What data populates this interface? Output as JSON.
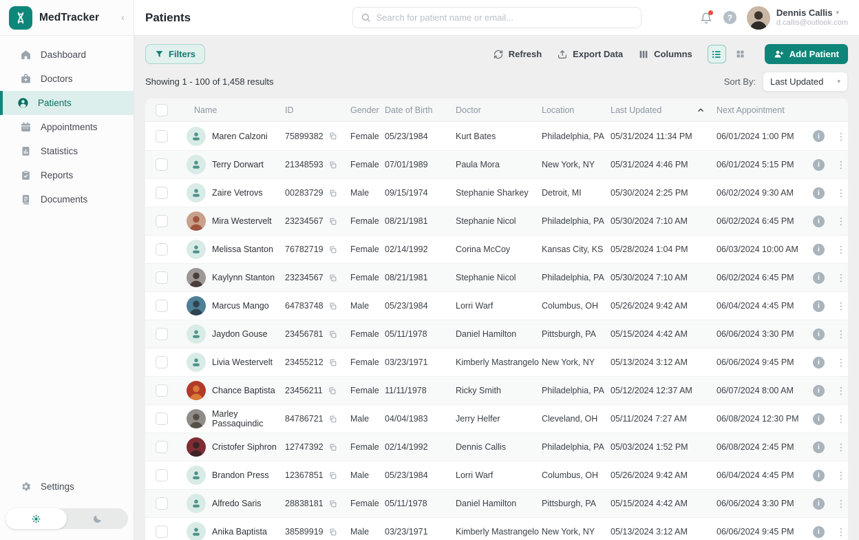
{
  "brand": {
    "name": "MedTracker"
  },
  "sidebar": {
    "items": [
      {
        "label": "Dashboard",
        "icon": "home-icon",
        "active": false
      },
      {
        "label": "Doctors",
        "icon": "doctors-icon",
        "active": false
      },
      {
        "label": "Patients",
        "icon": "patients-icon",
        "active": true
      },
      {
        "label": "Appointments",
        "icon": "calendar-icon",
        "active": false
      },
      {
        "label": "Statistics",
        "icon": "statistics-icon",
        "active": false
      },
      {
        "label": "Reports",
        "icon": "reports-icon",
        "active": false
      },
      {
        "label": "Documents",
        "icon": "documents-icon",
        "active": false
      }
    ],
    "settings_label": "Settings"
  },
  "header": {
    "title": "Patients",
    "search_placeholder": "Search for patient name or email...",
    "user": {
      "name": "Dennis Callis",
      "email": "d.callis@outlook.com"
    }
  },
  "toolbar": {
    "filters_label": "Filters",
    "refresh_label": "Refresh",
    "export_label": "Export Data",
    "columns_label": "Columns",
    "add_patient_label": "Add Patient"
  },
  "results": {
    "summary": "Showing 1 - 100 of 1,458 results",
    "sort_by_label": "Sort By:",
    "sort_value": "Last Updated"
  },
  "table": {
    "columns": [
      "Name",
      "ID",
      "Gender",
      "Date of Birth",
      "Doctor",
      "Location",
      "Last Updated",
      "Next Appointment"
    ],
    "sorted_column": "Last Updated",
    "sort_direction": "asc",
    "rows": [
      {
        "name": "Maren Calzoni",
        "id": "75899382",
        "gender": "Female",
        "dob": "05/23/1984",
        "doctor": "Kurt Bates",
        "location": "Philadelphia, PA",
        "last_updated": "05/31/2024 11:34 PM",
        "next_appointment": "06/01/2024 1:00 PM",
        "avatar": {
          "type": "generic"
        }
      },
      {
        "name": "Terry Dorwart",
        "id": "21348593",
        "gender": "Female",
        "dob": "07/01/1989",
        "doctor": "Paula Mora",
        "location": "New York, NY",
        "last_updated": "05/31/2024 4:46 PM",
        "next_appointment": "06/01/2024 5:15 PM",
        "avatar": {
          "type": "generic"
        }
      },
      {
        "name": "Zaire Vetrovs",
        "id": "00283729",
        "gender": "Male",
        "dob": "09/15/1974",
        "doctor": "Stephanie Sharkey",
        "location": "Detroit, MI",
        "last_updated": "05/30/2024 2:25 PM",
        "next_appointment": "06/02/2024 9:30 AM",
        "avatar": {
          "type": "generic"
        }
      },
      {
        "name": "Mira Westervelt",
        "id": "23234567",
        "gender": "Female",
        "dob": "08/21/1981",
        "doctor": "Stephanie Nicol",
        "location": "Philadelphia, PA",
        "last_updated": "05/30/2024 7:10 AM",
        "next_appointment": "06/02/2024 6:45 PM",
        "avatar": {
          "type": "photo",
          "bg": "#c9a08b",
          "fg": "#a05440"
        }
      },
      {
        "name": "Melissa Stanton",
        "id": "76782719",
        "gender": "Female",
        "dob": "02/14/1992",
        "doctor": "Corina McCoy",
        "location": "Kansas City, KS",
        "last_updated": "05/28/2024 1:04 PM",
        "next_appointment": "06/03/2024 10:00 AM",
        "avatar": {
          "type": "generic"
        }
      },
      {
        "name": "Kaylynn Stanton",
        "id": "23234567",
        "gender": "Female",
        "dob": "08/21/1981",
        "doctor": "Stephanie Nicol",
        "location": "Philadelphia, PA",
        "last_updated": "05/30/2024 7:10 AM",
        "next_appointment": "06/02/2024 6:45 PM",
        "avatar": {
          "type": "photo",
          "bg": "#9d9795",
          "fg": "#4a3e3a"
        }
      },
      {
        "name": "Marcus Mango",
        "id": "64783748",
        "gender": "Male",
        "dob": "05/23/1984",
        "doctor": "Lorri Warf",
        "location": "Columbus, OH",
        "last_updated": "05/26/2024 9:42 AM",
        "next_appointment": "06/04/2024 4:45 PM",
        "avatar": {
          "type": "photo",
          "bg": "#4e7f95",
          "fg": "#2d4350"
        }
      },
      {
        "name": "Jaydon Gouse",
        "id": "23456781",
        "gender": "Female",
        "dob": "05/11/1978",
        "doctor": "Daniel Hamilton",
        "location": "Pittsburgh, PA",
        "last_updated": "05/15/2024 4:42 AM",
        "next_appointment": "06/06/2024 3:30 PM",
        "avatar": {
          "type": "generic"
        }
      },
      {
        "name": "Livia Westervelt",
        "id": "23455212",
        "gender": "Female",
        "dob": "03/23/1971",
        "doctor": "Kimberly Mastrangelo",
        "location": "New York, NY",
        "last_updated": "05/13/2024 3:12 AM",
        "next_appointment": "06/06/2024 9:45 PM",
        "avatar": {
          "type": "generic"
        }
      },
      {
        "name": "Chance Baptista",
        "id": "23456211",
        "gender": "Female",
        "dob": "11/11/1978",
        "doctor": "Ricky Smith",
        "location": "Philadelphia, PA",
        "last_updated": "05/12/2024 12:37 AM",
        "next_appointment": "06/07/2024 8:00 AM",
        "avatar": {
          "type": "photo",
          "bg": "#b23a28",
          "fg": "#d97a35"
        }
      },
      {
        "name": "Marley Passaquindic",
        "id": "84786721",
        "gender": "Male",
        "dob": "04/04/1983",
        "doctor": "Jerry Helfer",
        "location": "Cleveland, OH",
        "last_updated": "05/11/2024 7:27 AM",
        "next_appointment": "06/08/2024 12:30 PM",
        "avatar": {
          "type": "photo",
          "bg": "#908d89",
          "fg": "#575049"
        }
      },
      {
        "name": "Cristofer Siphron",
        "id": "12747392",
        "gender": "Female",
        "dob": "02/14/1992",
        "doctor": "Dennis Callis",
        "location": "Philadelphia, PA",
        "last_updated": "05/03/2024 1:52 PM",
        "next_appointment": "06/08/2024 2:45 PM",
        "avatar": {
          "type": "photo",
          "bg": "#7e2d35",
          "fg": "#3d2226"
        }
      },
      {
        "name": "Brandon Press",
        "id": "12367851",
        "gender": "Male",
        "dob": "05/23/1984",
        "doctor": "Lorri Warf",
        "location": "Columbus, OH",
        "last_updated": "05/26/2024 9:42 AM",
        "next_appointment": "06/04/2024 4:45 PM",
        "avatar": {
          "type": "generic"
        }
      },
      {
        "name": "Alfredo Saris",
        "id": "28838181",
        "gender": "Female",
        "dob": "05/11/1978",
        "doctor": "Daniel Hamilton",
        "location": "Pittsburgh, PA",
        "last_updated": "05/15/2024 4:42 AM",
        "next_appointment": "06/06/2024 3:30 PM",
        "avatar": {
          "type": "generic"
        }
      },
      {
        "name": "Anika Baptista",
        "id": "38589919",
        "gender": "Male",
        "dob": "03/23/1971",
        "doctor": "Kimberly Mastrangelo",
        "location": "New York, NY",
        "last_updated": "05/13/2024 3:12 AM",
        "next_appointment": "06/06/2024 9:45 PM",
        "avatar": {
          "type": "generic"
        }
      }
    ]
  },
  "colors": {
    "accent": "#0f867a",
    "accent_light_bg": "#e1f1ee",
    "active_nav_bg": "#ddefec",
    "notification_dot": "#e8503f",
    "user_photo_bg": "#c9b6a4",
    "user_photo_fg": "#3d362f"
  }
}
